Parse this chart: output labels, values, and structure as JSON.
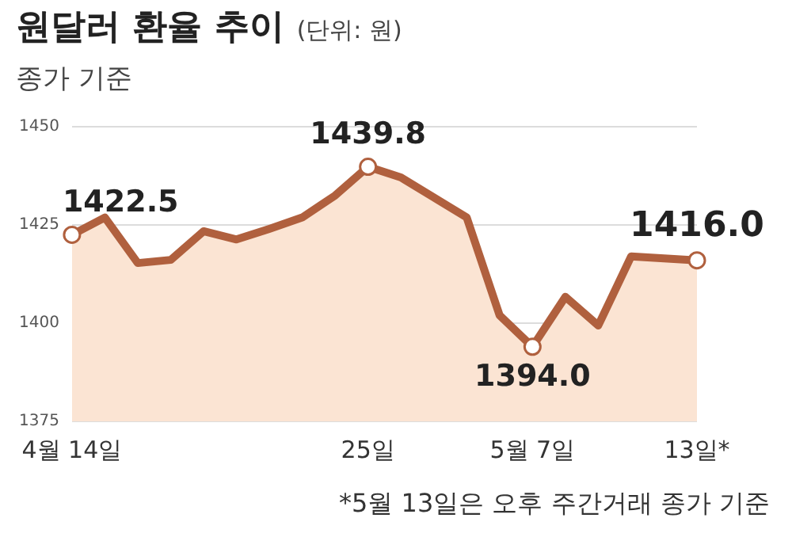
{
  "chart_data": {
    "type": "area",
    "title": "원달러 환율 추이",
    "ylabel": "(단위: 원)",
    "subtitle": "종가 기준",
    "categories": [
      "4월 14일",
      null,
      null,
      null,
      null,
      null,
      null,
      null,
      null,
      "25일",
      null,
      null,
      null,
      null,
      "5월 7일",
      null,
      null,
      null,
      null,
      "13일*"
    ],
    "series": [
      {
        "color": "#b0603e",
        "values": [
          1422.5,
          1426.9,
          1415.3,
          1416.1,
          1423.4,
          1421.3,
          1424,
          1426.9,
          1432.5,
          1439.8,
          1437.1,
          1432,
          1426.9,
          1402,
          1394.0,
          1406.7,
          1399.4,
          1417,
          1416.5,
          1416.0
        ],
        "value_labels": [
          "1422.5",
          null,
          null,
          null,
          null,
          null,
          null,
          null,
          null,
          "1439.8",
          null,
          null,
          null,
          null,
          "1394.0",
          null,
          null,
          null,
          null,
          "1416.0"
        ]
      }
    ],
    "ylim": [
      1375,
      1450
    ],
    "yticks": [
      1375,
      1400,
      1425,
      1450
    ],
    "grid": "y",
    "annotations": [
      "*5월 13일은 오후 주간거래 종가 기준"
    ]
  }
}
